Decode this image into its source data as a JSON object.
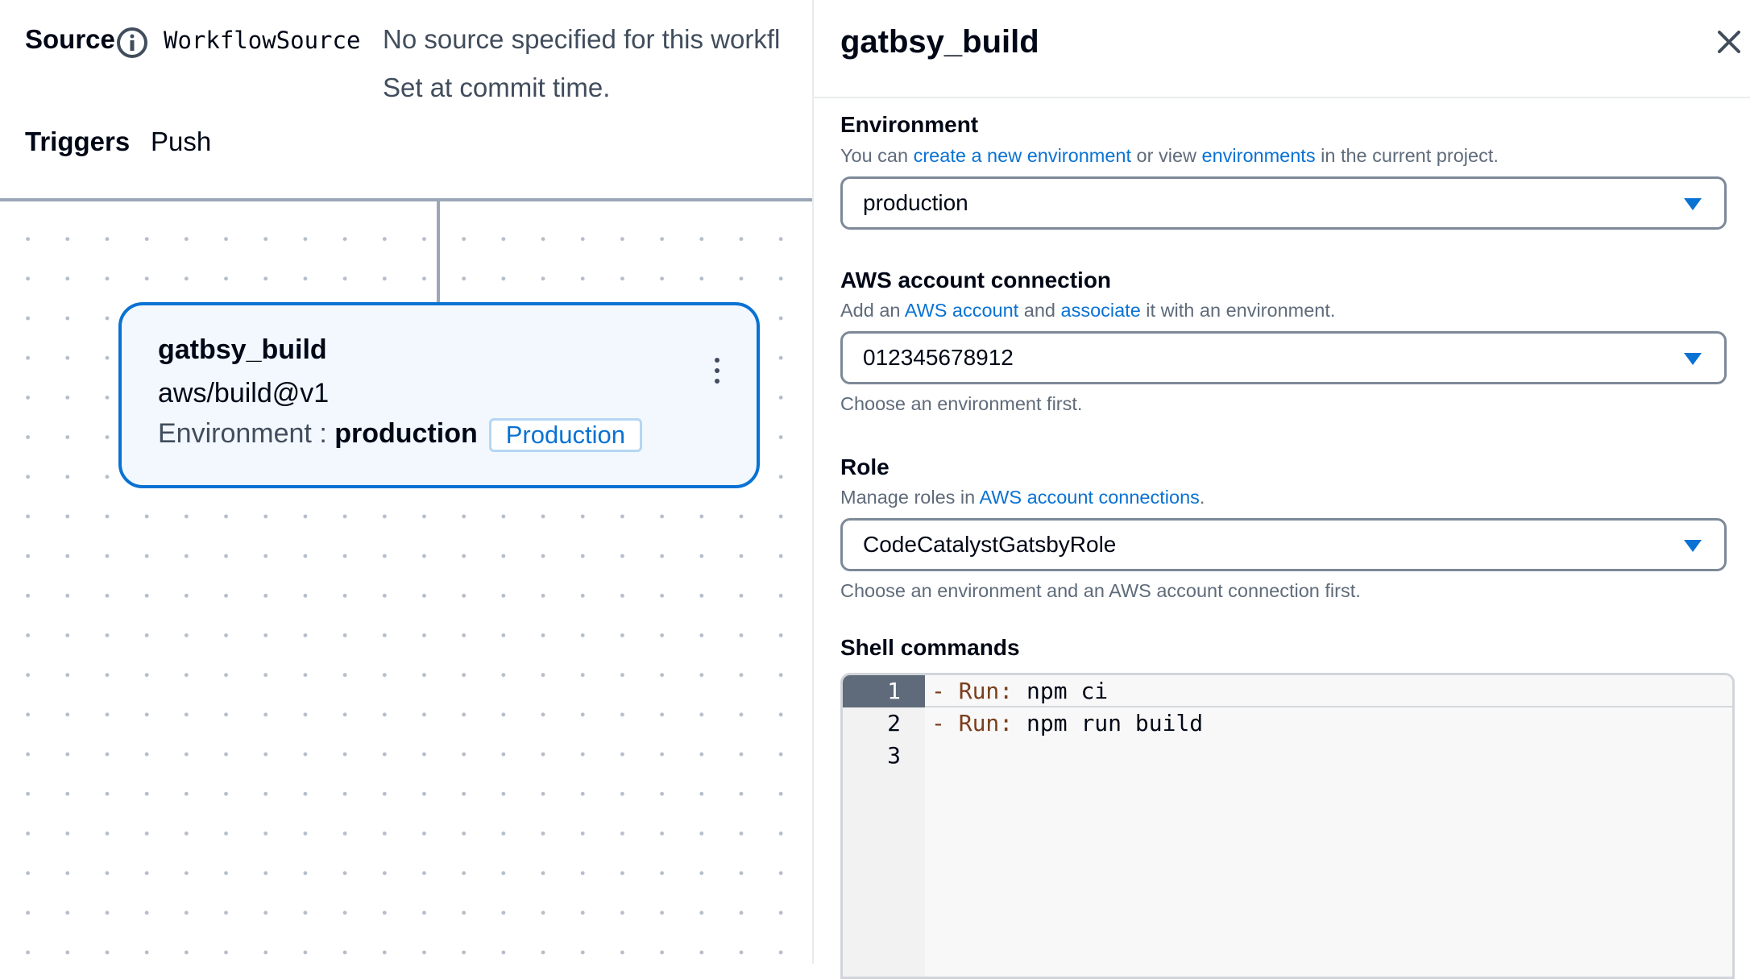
{
  "workflow": {
    "source_label": "Source",
    "source_name": "WorkflowSource",
    "source_message": "No source specified for this workfl",
    "source_note": "Set at commit time.",
    "triggers_label": "Triggers",
    "triggers_value": "Push"
  },
  "action_card": {
    "name": "gatbsy_build",
    "identifier": "aws/build@v1",
    "environment_label": "Environment :",
    "environment_value": "production",
    "environment_badge": "Production"
  },
  "panel": {
    "title": "gatbsy_build",
    "environment": {
      "label": "Environment",
      "desc_pre": "You can ",
      "link1": "create a new environment",
      "desc_mid": " or view ",
      "link2": "environments",
      "desc_post": " in the current project.",
      "value": "production"
    },
    "aws_account": {
      "label": "AWS account connection",
      "desc_pre": "Add an ",
      "link1": "AWS account",
      "desc_mid": " and ",
      "link2": "associate",
      "desc_post": " it with an environment.",
      "value": "012345678912",
      "hint": "Choose an environment first."
    },
    "role": {
      "label": "Role",
      "desc_pre": "Manage roles in ",
      "link1": "AWS account connections",
      "desc_post": ".",
      "value": "CodeCatalystGatsbyRole",
      "hint": "Choose an environment and an AWS account connection first."
    },
    "shell": {
      "label": "Shell commands",
      "lines": [
        {
          "num": "1",
          "dash": "- ",
          "key": "Run:",
          "val": " npm ci"
        },
        {
          "num": "2",
          "dash": "- ",
          "key": "Run:",
          "val": " npm run build"
        },
        {
          "num": "3",
          "dash": "",
          "key": "",
          "val": ""
        }
      ]
    }
  },
  "colors": {
    "accent": "#0972d3",
    "code_key": "#7a3e1d"
  }
}
